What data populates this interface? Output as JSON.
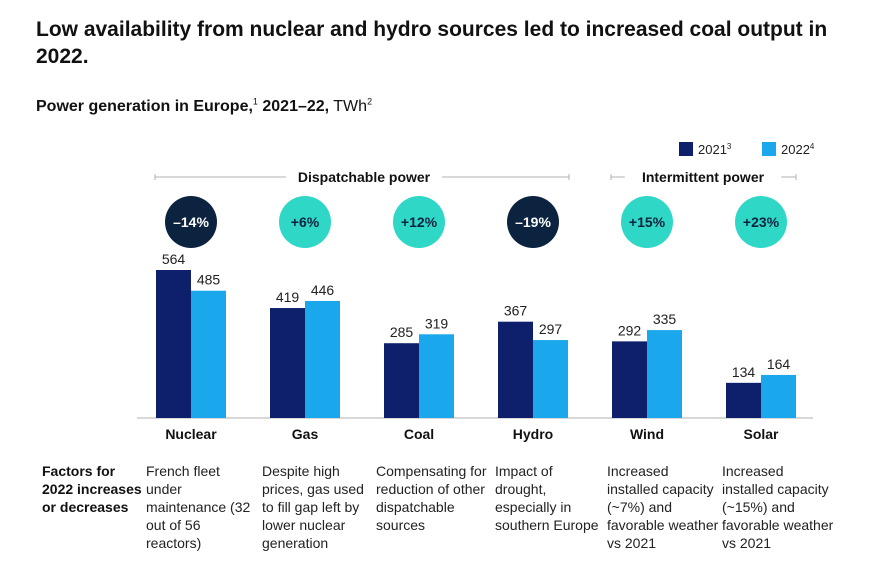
{
  "title": "Low availability from nuclear and hydro sources led to increased coal output in 2022.",
  "subtitle": {
    "bold": "Power generation in Europe,",
    "note1": "1",
    "years": " 2021–22,",
    "unit": " TWh",
    "note2": "2"
  },
  "colors": {
    "series_2021": "#0e1f6b",
    "series_2022": "#1aa7ec",
    "badge_increase": "#2fd8c6",
    "badge_decrease": "#0c2340",
    "axis": "#b0b0b0"
  },
  "chart_data": {
    "type": "bar",
    "categories": [
      "Nuclear",
      "Gas",
      "Coal",
      "Hydro",
      "Wind",
      "Solar"
    ],
    "series": [
      {
        "name": "2021",
        "note": "3",
        "values": [
          564,
          419,
          285,
          367,
          292,
          134
        ]
      },
      {
        "name": "2022",
        "note": "4",
        "values": [
          485,
          446,
          319,
          297,
          335,
          164
        ]
      }
    ],
    "changes": [
      "–14%",
      "+6%",
      "+12%",
      "–19%",
      "+15%",
      "+23%"
    ],
    "change_direction": [
      "down",
      "up",
      "up",
      "down",
      "up",
      "up"
    ],
    "groups": [
      {
        "label": "Dispatchable power",
        "categories": [
          "Nuclear",
          "Gas",
          "Coal",
          "Hydro"
        ]
      },
      {
        "label": "Intermittent power",
        "categories": [
          "Wind",
          "Solar"
        ]
      }
    ],
    "ylim": [
      0,
      600
    ],
    "unit": "TWh",
    "legend": "top-right"
  },
  "factors": {
    "heading": "Factors for 2022 increases or decreases",
    "items": [
      "French fleet under maintenance (32 out of 56 reactors)",
      "Despite high prices, gas used to fill gap left by lower nuclear generation",
      "Compensating for reduction of other dispatchable sources",
      "Impact of drought, especially in southern Europe",
      "Increased installed capacity (~7%) and favorable weather vs 2021",
      "Increased installed capacity (~15%) and favorable weather vs 2021"
    ]
  }
}
